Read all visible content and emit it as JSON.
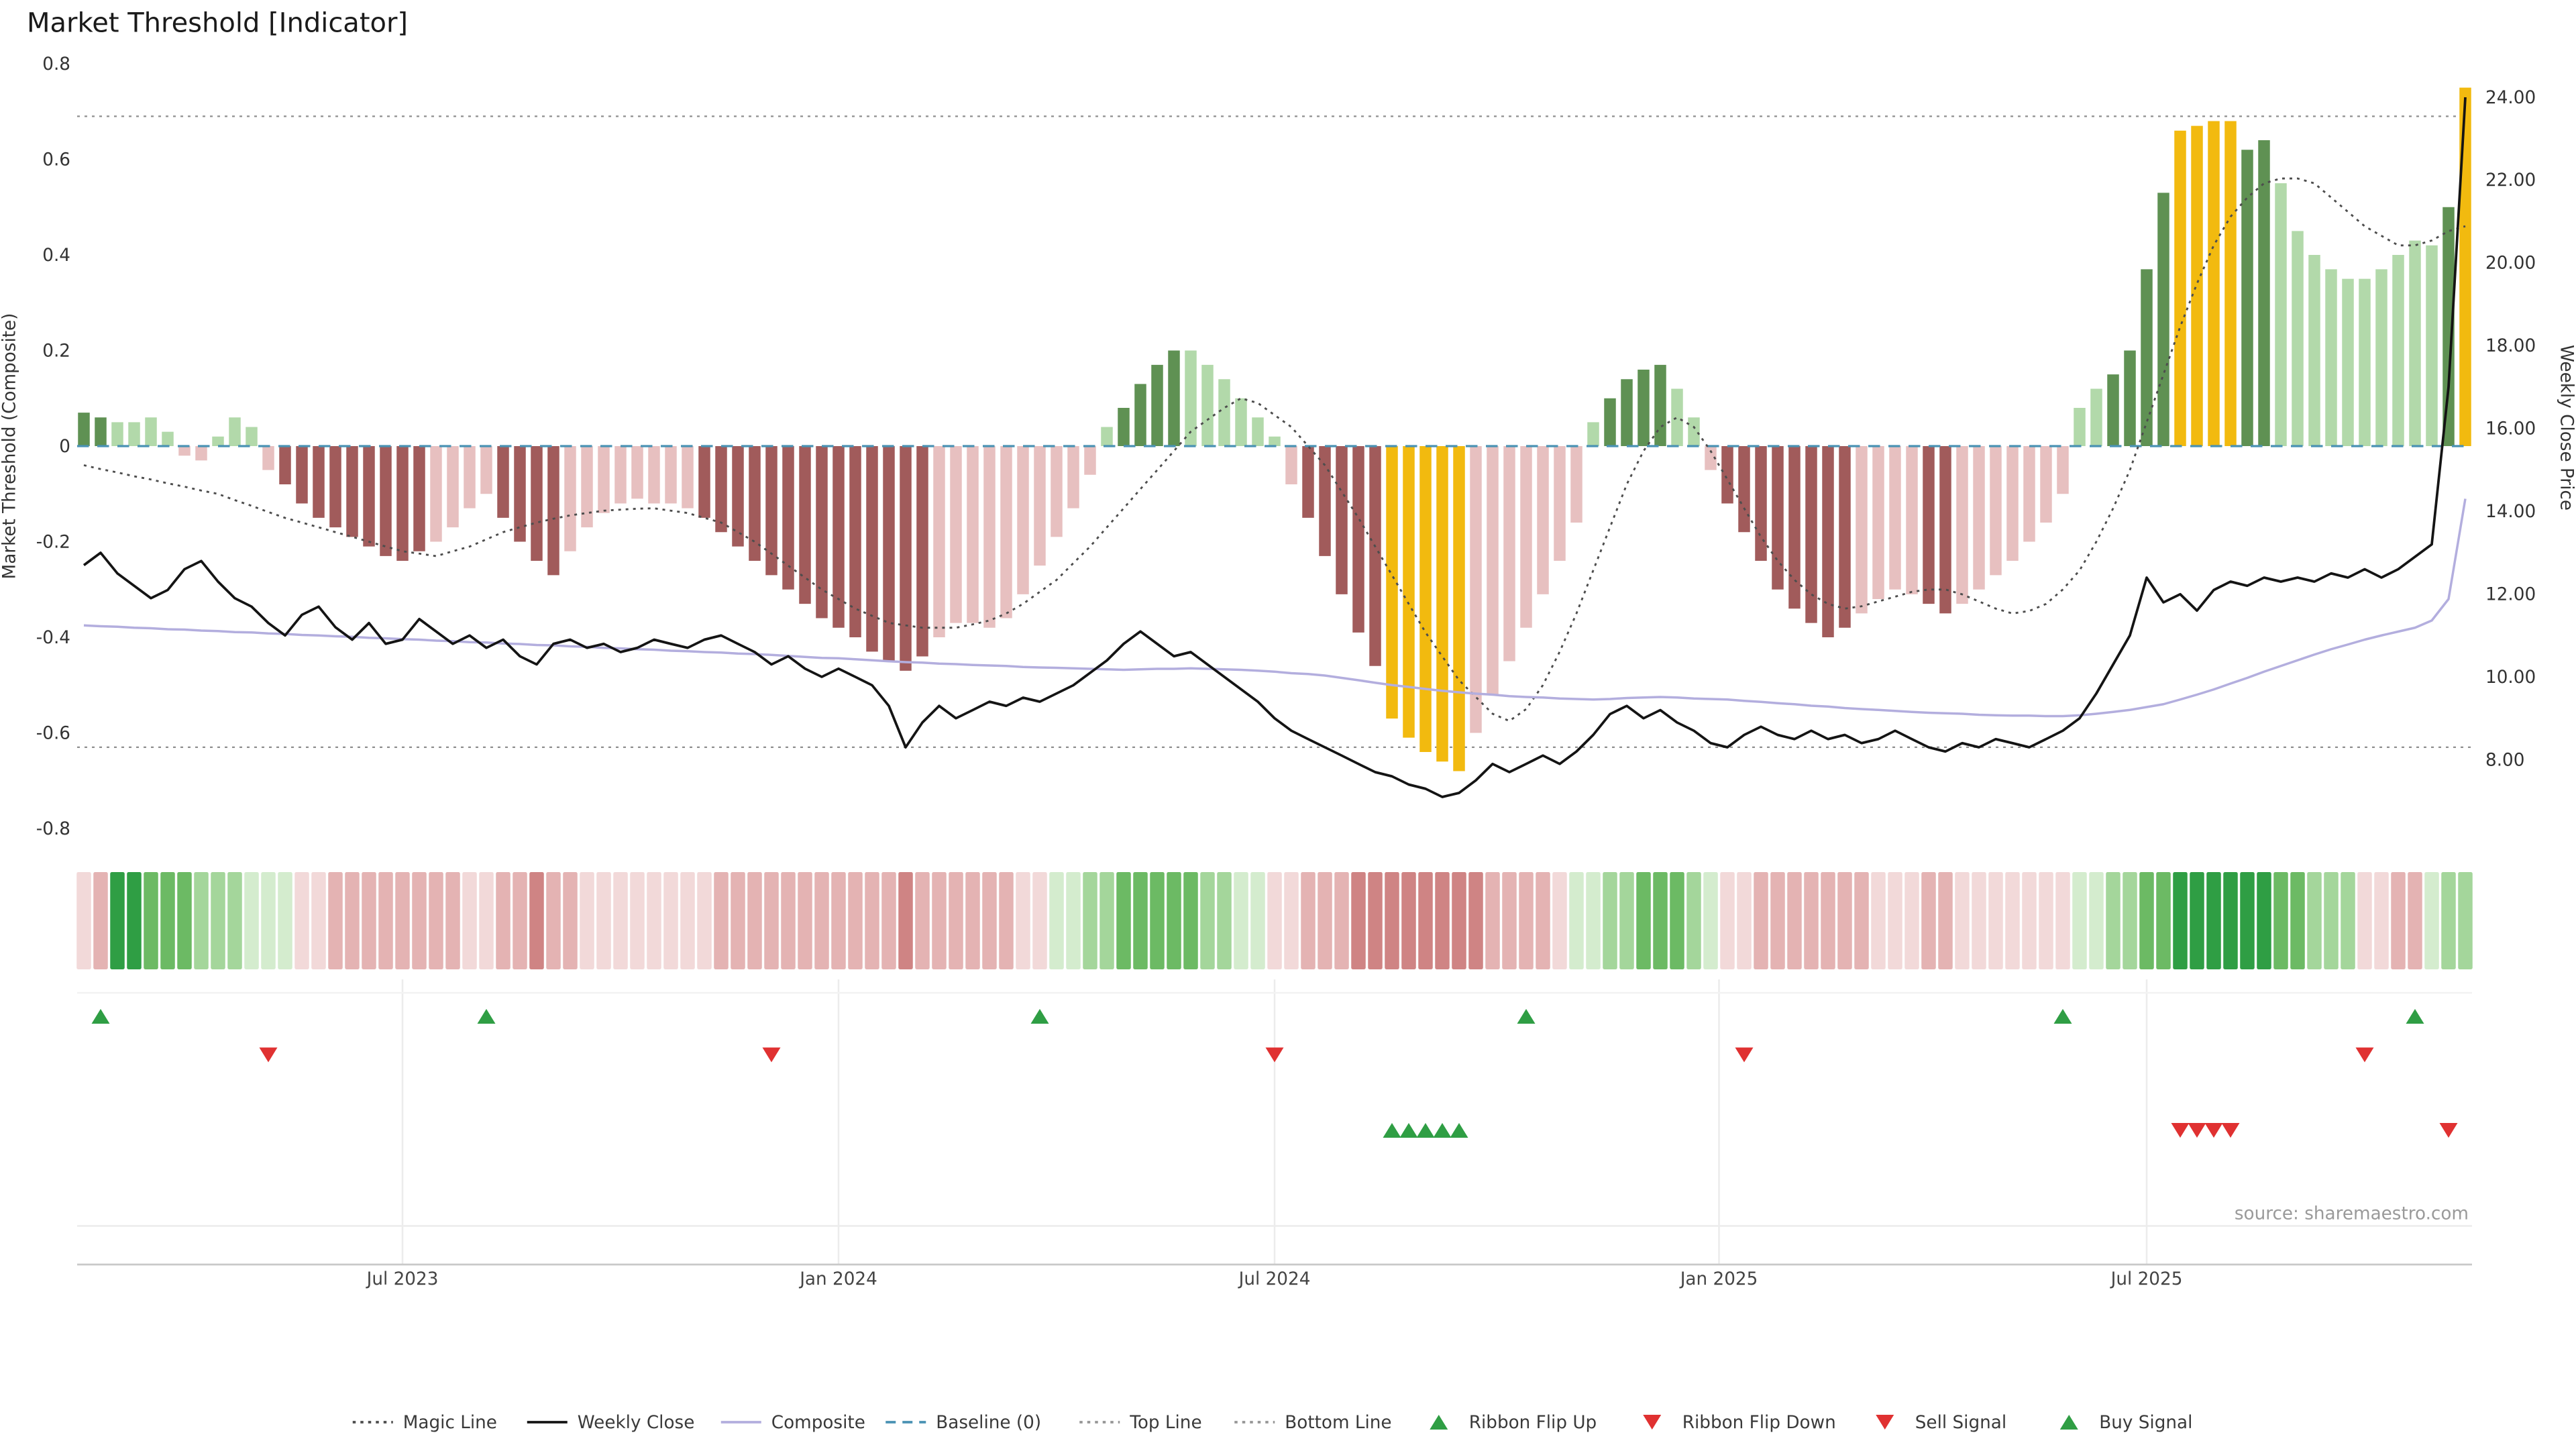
{
  "page": {
    "title": "Market Threshold [Indicator]",
    "source": "source: sharemaestro.com",
    "background": "#ffffff"
  },
  "chart_data": {
    "type": "bar",
    "title": "Market Threshold [Indicator]",
    "x_axis": {
      "tick_labels": [
        "Jul 2023",
        "Jan 2024",
        "Jul 2024",
        "Jan 2025",
        "Jul 2025"
      ],
      "tick_weeks": [
        19,
        45,
        71,
        97.5,
        123
      ],
      "total_weeks": 143
    },
    "y_left": {
      "label": "Market Threshold (Composite)",
      "tick_labels": [
        "0.8",
        "0.6",
        "0.4",
        "0.2",
        "0",
        "-0.2",
        "-0.4",
        "-0.6",
        "-0.8"
      ],
      "tick_values": [
        0.8,
        0.6,
        0.4,
        0.2,
        0,
        -0.2,
        -0.4,
        -0.6,
        -0.8
      ],
      "range": [
        -0.8,
        0.8
      ]
    },
    "y_right": {
      "label": "Weekly Close Price",
      "tick_labels": [
        "24.00",
        "22.00",
        "20.00",
        "18.00",
        "16.00",
        "14.00",
        "12.00",
        "10.00",
        "8.00"
      ],
      "tick_values": [
        24,
        22,
        20,
        18,
        16,
        14,
        12,
        10,
        8
      ],
      "range": [
        8,
        24
      ]
    },
    "reference_lines": {
      "baseline": 0,
      "top_line": 0.69,
      "bottom_line": -0.63
    },
    "series": [
      {
        "name": "Threshold Histogram",
        "type": "bar",
        "values": [
          0.07,
          0.06,
          0.05,
          0.05,
          0.06,
          0.03,
          -0.02,
          -0.03,
          0.02,
          0.06,
          0.04,
          -0.05,
          -0.08,
          -0.12,
          -0.15,
          -0.17,
          -0.19,
          -0.21,
          -0.23,
          -0.24,
          -0.22,
          -0.2,
          -0.17,
          -0.13,
          -0.1,
          -0.15,
          -0.2,
          -0.24,
          -0.27,
          -0.22,
          -0.17,
          -0.14,
          -0.12,
          -0.11,
          -0.12,
          -0.12,
          -0.13,
          -0.15,
          -0.18,
          -0.21,
          -0.24,
          -0.27,
          -0.3,
          -0.33,
          -0.36,
          -0.38,
          -0.4,
          -0.43,
          -0.45,
          -0.47,
          -0.44,
          -0.4,
          -0.37,
          -0.37,
          -0.38,
          -0.36,
          -0.31,
          -0.25,
          -0.19,
          -0.13,
          -0.06,
          0.04,
          0.08,
          0.13,
          0.17,
          0.2,
          0.2,
          0.17,
          0.14,
          0.1,
          0.06,
          0.02,
          -0.08,
          -0.15,
          -0.23,
          -0.31,
          -0.39,
          -0.46,
          -0.57,
          -0.61,
          -0.64,
          -0.66,
          -0.68,
          -0.6,
          -0.52,
          -0.45,
          -0.38,
          -0.31,
          -0.24,
          -0.16,
          0.05,
          0.1,
          0.14,
          0.16,
          0.17,
          0.12,
          0.06,
          -0.05,
          -0.12,
          -0.18,
          -0.24,
          -0.3,
          -0.34,
          -0.37,
          -0.4,
          -0.38,
          -0.35,
          -0.32,
          -0.3,
          -0.31,
          -0.33,
          -0.35,
          -0.33,
          -0.3,
          -0.27,
          -0.24,
          -0.2,
          -0.16,
          -0.1,
          0.08,
          0.12,
          0.15,
          0.2,
          0.37,
          0.53,
          0.66,
          0.67,
          0.68,
          0.68,
          0.62,
          0.64,
          0.55,
          0.45,
          0.4,
          0.37,
          0.35,
          0.35,
          0.37,
          0.4,
          0.43,
          0.42,
          0.5,
          0.75
        ],
        "colors": [
          "dg",
          "dg",
          "lg",
          "lg",
          "lg",
          "lg",
          "lr",
          "lr",
          "lg",
          "lg",
          "lg",
          "lr",
          "dr",
          "dr",
          "dr",
          "dr",
          "dr",
          "dr",
          "dr",
          "dr",
          "dr",
          "lr",
          "lr",
          "lr",
          "lr",
          "dr",
          "dr",
          "dr",
          "dr",
          "lr",
          "lr",
          "lr",
          "lr",
          "lr",
          "lr",
          "lr",
          "lr",
          "dr",
          "dr",
          "dr",
          "dr",
          "dr",
          "dr",
          "dr",
          "dr",
          "dr",
          "dr",
          "dr",
          "dr",
          "dr",
          "dr",
          "lr",
          "lr",
          "lr",
          "lr",
          "lr",
          "lr",
          "lr",
          "lr",
          "lr",
          "lr",
          "lg",
          "dg",
          "dg",
          "dg",
          "dg",
          "lg",
          "lg",
          "lg",
          "lg",
          "lg",
          "lg",
          "lr",
          "dr",
          "dr",
          "dr",
          "dr",
          "dr",
          "au",
          "au",
          "au",
          "au",
          "au",
          "lr",
          "lr",
          "lr",
          "lr",
          "lr",
          "lr",
          "lr",
          "lg",
          "dg",
          "dg",
          "dg",
          "dg",
          "lg",
          "lg",
          "lr",
          "dr",
          "dr",
          "dr",
          "dr",
          "dr",
          "dr",
          "dr",
          "dr",
          "lr",
          "lr",
          "lr",
          "lr",
          "dr",
          "dr",
          "lr",
          "lr",
          "lr",
          "lr",
          "lr",
          "lr",
          "lr",
          "lg",
          "lg",
          "dg",
          "dg",
          "dg",
          "dg",
          "au",
          "au",
          "au",
          "au",
          "dg",
          "dg",
          "lg",
          "lg",
          "lg",
          "lg",
          "lg",
          "lg",
          "lg",
          "lg",
          "lg",
          "lg",
          "dg",
          "au"
        ]
      },
      {
        "name": "Weekly Close",
        "type": "line",
        "axis": "right",
        "values": [
          12.7,
          13.0,
          12.5,
          12.2,
          11.9,
          12.1,
          12.6,
          12.8,
          12.3,
          11.9,
          11.7,
          11.3,
          11.0,
          11.5,
          11.7,
          11.2,
          10.9,
          11.3,
          10.8,
          10.9,
          11.4,
          11.1,
          10.8,
          11.0,
          10.7,
          10.9,
          10.5,
          10.3,
          10.8,
          10.9,
          10.7,
          10.8,
          10.6,
          10.7,
          10.9,
          10.8,
          10.7,
          10.9,
          11.0,
          10.8,
          10.6,
          10.3,
          10.5,
          10.2,
          10.0,
          10.2,
          10.0,
          9.8,
          9.3,
          8.3,
          8.9,
          9.3,
          9.0,
          9.2,
          9.4,
          9.3,
          9.5,
          9.4,
          9.6,
          9.8,
          10.1,
          10.4,
          10.8,
          11.1,
          10.8,
          10.5,
          10.6,
          10.3,
          10.0,
          9.7,
          9.4,
          9.0,
          8.7,
          8.5,
          8.3,
          8.1,
          7.9,
          7.7,
          7.6,
          7.4,
          7.3,
          7.1,
          7.2,
          7.5,
          7.9,
          7.7,
          7.9,
          8.1,
          7.9,
          8.2,
          8.6,
          9.1,
          9.3,
          9.0,
          9.2,
          8.9,
          8.7,
          8.4,
          8.3,
          8.6,
          8.8,
          8.6,
          8.5,
          8.7,
          8.5,
          8.6,
          8.4,
          8.5,
          8.7,
          8.5,
          8.3,
          8.2,
          8.4,
          8.3,
          8.5,
          8.4,
          8.3,
          8.5,
          8.7,
          9.0,
          9.6,
          10.3,
          11.0,
          12.4,
          11.8,
          12.0,
          11.6,
          12.1,
          12.3,
          12.2,
          12.4,
          12.3,
          12.4,
          12.3,
          12.5,
          12.4,
          12.6,
          12.4,
          12.6,
          12.9,
          13.2,
          17.0,
          24.0
        ]
      },
      {
        "name": "Composite",
        "type": "line",
        "axis": "left",
        "values": [
          -0.375,
          -0.377,
          -0.378,
          -0.38,
          -0.381,
          -0.383,
          -0.384,
          -0.386,
          -0.387,
          -0.389,
          -0.39,
          -0.392,
          -0.393,
          -0.395,
          -0.396,
          -0.398,
          -0.399,
          -0.401,
          -0.402,
          -0.404,
          -0.405,
          -0.407,
          -0.408,
          -0.41,
          -0.411,
          -0.413,
          -0.414,
          -0.416,
          -0.417,
          -0.419,
          -0.42,
          -0.422,
          -0.423,
          -0.425,
          -0.426,
          -0.428,
          -0.429,
          -0.431,
          -0.432,
          -0.434,
          -0.435,
          -0.437,
          -0.439,
          -0.441,
          -0.443,
          -0.444,
          -0.446,
          -0.448,
          -0.45,
          -0.452,
          -0.453,
          -0.455,
          -0.456,
          -0.458,
          -0.459,
          -0.46,
          -0.462,
          -0.463,
          -0.464,
          -0.465,
          -0.466,
          -0.467,
          -0.468,
          -0.467,
          -0.466,
          -0.466,
          -0.465,
          -0.466,
          -0.467,
          -0.468,
          -0.47,
          -0.472,
          -0.475,
          -0.477,
          -0.48,
          -0.485,
          -0.49,
          -0.495,
          -0.5,
          -0.504,
          -0.508,
          -0.512,
          -0.515,
          -0.518,
          -0.52,
          -0.523,
          -0.525,
          -0.526,
          -0.528,
          -0.529,
          -0.53,
          -0.529,
          -0.527,
          -0.526,
          -0.525,
          -0.526,
          -0.528,
          -0.529,
          -0.53,
          -0.533,
          -0.535,
          -0.538,
          -0.54,
          -0.543,
          -0.545,
          -0.548,
          -0.55,
          -0.552,
          -0.554,
          -0.556,
          -0.558,
          -0.559,
          -0.56,
          -0.562,
          -0.563,
          -0.564,
          -0.564,
          -0.565,
          -0.565,
          -0.563,
          -0.56,
          -0.556,
          -0.552,
          -0.546,
          -0.54,
          -0.53,
          -0.52,
          -0.509,
          -0.497,
          -0.485,
          -0.472,
          -0.46,
          -0.448,
          -0.436,
          -0.425,
          -0.415,
          -0.405,
          -0.396,
          -0.388,
          -0.38,
          -0.365,
          -0.32,
          -0.11
        ]
      },
      {
        "name": "Magic Line",
        "type": "line",
        "axis": "left",
        "values": [
          -0.04,
          -0.048,
          -0.055,
          -0.063,
          -0.07,
          -0.078,
          -0.085,
          -0.093,
          -0.1,
          -0.113,
          -0.125,
          -0.138,
          -0.15,
          -0.16,
          -0.17,
          -0.18,
          -0.19,
          -0.2,
          -0.21,
          -0.22,
          -0.225,
          -0.23,
          -0.22,
          -0.21,
          -0.195,
          -0.18,
          -0.17,
          -0.16,
          -0.152,
          -0.145,
          -0.14,
          -0.135,
          -0.133,
          -0.131,
          -0.13,
          -0.135,
          -0.14,
          -0.15,
          -0.16,
          -0.18,
          -0.2,
          -0.225,
          -0.25,
          -0.275,
          -0.3,
          -0.32,
          -0.34,
          -0.355,
          -0.37,
          -0.375,
          -0.38,
          -0.38,
          -0.38,
          -0.373,
          -0.365,
          -0.35,
          -0.33,
          -0.305,
          -0.28,
          -0.245,
          -0.21,
          -0.17,
          -0.13,
          -0.09,
          -0.05,
          -0.01,
          0.03,
          0.055,
          0.08,
          0.1,
          0.09,
          0.065,
          0.04,
          0,
          -0.04,
          -0.095,
          -0.15,
          -0.21,
          -0.27,
          -0.33,
          -0.39,
          -0.44,
          -0.49,
          -0.525,
          -0.56,
          -0.575,
          -0.55,
          -0.5,
          -0.43,
          -0.35,
          -0.26,
          -0.17,
          -0.08,
          -0.01,
          0.04,
          0.06,
          0.04,
          -0.01,
          -0.07,
          -0.13,
          -0.19,
          -0.24,
          -0.28,
          -0.31,
          -0.33,
          -0.34,
          -0.335,
          -0.325,
          -0.315,
          -0.305,
          -0.3,
          -0.3,
          -0.31,
          -0.325,
          -0.34,
          -0.35,
          -0.345,
          -0.33,
          -0.3,
          -0.26,
          -0.2,
          -0.13,
          -0.05,
          0.05,
          0.15,
          0.25,
          0.34,
          0.42,
          0.48,
          0.52,
          0.55,
          0.56,
          0.56,
          0.55,
          0.52,
          0.49,
          0.46,
          0.44,
          0.42,
          0.42,
          0.43,
          0.45,
          0.46
        ]
      }
    ],
    "ribbon": [
      "r1",
      "r2",
      "g4",
      "g4",
      "g3",
      "g3",
      "g3",
      "g2",
      "g2",
      "g2",
      "g1",
      "g1",
      "g1",
      "r1",
      "r1",
      "r2",
      "r2",
      "r2",
      "r2",
      "r2",
      "r2",
      "r2",
      "r2",
      "r1",
      "r1",
      "r2",
      "r2",
      "r3",
      "r2",
      "r2",
      "r1",
      "r1",
      "r1",
      "r1",
      "r1",
      "r1",
      "r1",
      "r1",
      "r2",
      "r2",
      "r2",
      "r2",
      "r2",
      "r2",
      "r2",
      "r2",
      "r2",
      "r2",
      "r2",
      "r3",
      "r2",
      "r2",
      "r2",
      "r2",
      "r2",
      "r2",
      "r1",
      "r1",
      "g1",
      "g1",
      "g2",
      "g2",
      "g3",
      "g3",
      "g3",
      "g3",
      "g3",
      "g2",
      "g2",
      "g1",
      "g1",
      "r1",
      "r1",
      "r2",
      "r2",
      "r2",
      "r3",
      "r3",
      "r3",
      "r3",
      "r3",
      "r3",
      "r3",
      "r3",
      "r2",
      "r2",
      "r2",
      "r2",
      "r1",
      "g1",
      "g1",
      "g2",
      "g2",
      "g3",
      "g3",
      "g3",
      "g2",
      "g1",
      "r1",
      "r1",
      "r2",
      "r2",
      "r2",
      "r2",
      "r2",
      "r2",
      "r2",
      "r1",
      "r1",
      "r1",
      "r2",
      "r2",
      "r1",
      "r1",
      "r1",
      "r1",
      "r1",
      "r1",
      "r1",
      "g1",
      "g1",
      "g2",
      "g2",
      "g3",
      "g3",
      "g4",
      "g4",
      "g4",
      "g4",
      "g4",
      "g4",
      "g3",
      "g3",
      "g2",
      "g2",
      "g2",
      "r1",
      "r1",
      "r2",
      "r2",
      "g1",
      "g2",
      "g2"
    ],
    "signals": {
      "ribbon_flip_up_weeks": [
        1,
        24,
        57,
        86,
        118,
        139
      ],
      "ribbon_flip_down_weeks": [
        11,
        41,
        71,
        99,
        136
      ],
      "buy_signal_weeks": [
        78,
        79,
        80,
        81,
        82
      ],
      "sell_signal_weeks": [
        125,
        126,
        127,
        128,
        141
      ]
    },
    "colors": {
      "bar_codes": {
        "dg": "#5f9153",
        "lg": "#b2d9aa",
        "dr": "#a15b5b",
        "lr": "#e7c0c0",
        "au": "#f2ba0f"
      },
      "ribbon_codes": {
        "g1": "#d4ecce",
        "g2": "#a4d69b",
        "g3": "#6cba64",
        "g4": "#2f9e44",
        "r1": "#f2d9d9",
        "r2": "#e4b3b3",
        "r3": "#cf8484"
      },
      "weekly_close": "#141414",
      "composite": "#b3aede",
      "magic": "#4d4d4d",
      "baseline": "#4a92b4",
      "reference": "#8f8f8f",
      "signal_green": "#2f9e44",
      "signal_red": "#e03131",
      "grid": "#ececec",
      "axis_line": "#c9c9c9",
      "tick_text": "#333333",
      "x_tick_text": "#444444"
    },
    "legend_position": "bottom-center",
    "grid": "minimal"
  },
  "legend": {
    "items": [
      {
        "label": "Magic Line",
        "marker": "line-dotted",
        "color": "#4d4d4d"
      },
      {
        "label": "Weekly Close",
        "marker": "line-solid",
        "color": "#141414"
      },
      {
        "label": "Composite",
        "marker": "line-solid",
        "color": "#b3aede"
      },
      {
        "label": "Baseline (0)",
        "marker": "line-dashed",
        "color": "#4a92b4"
      },
      {
        "label": "Top Line",
        "marker": "line-dotted",
        "color": "#969696"
      },
      {
        "label": "Bottom Line",
        "marker": "line-dotted",
        "color": "#969696"
      },
      {
        "label": "Ribbon Flip Up",
        "marker": "triangle-up",
        "color": "#2f9e44"
      },
      {
        "label": "Ribbon Flip Down",
        "marker": "triangle-down",
        "color": "#e03131"
      },
      {
        "label": "Sell Signal",
        "marker": "triangle-down",
        "color": "#e03131"
      },
      {
        "label": "Buy Signal",
        "marker": "triangle-up",
        "color": "#2f9e44"
      }
    ]
  }
}
